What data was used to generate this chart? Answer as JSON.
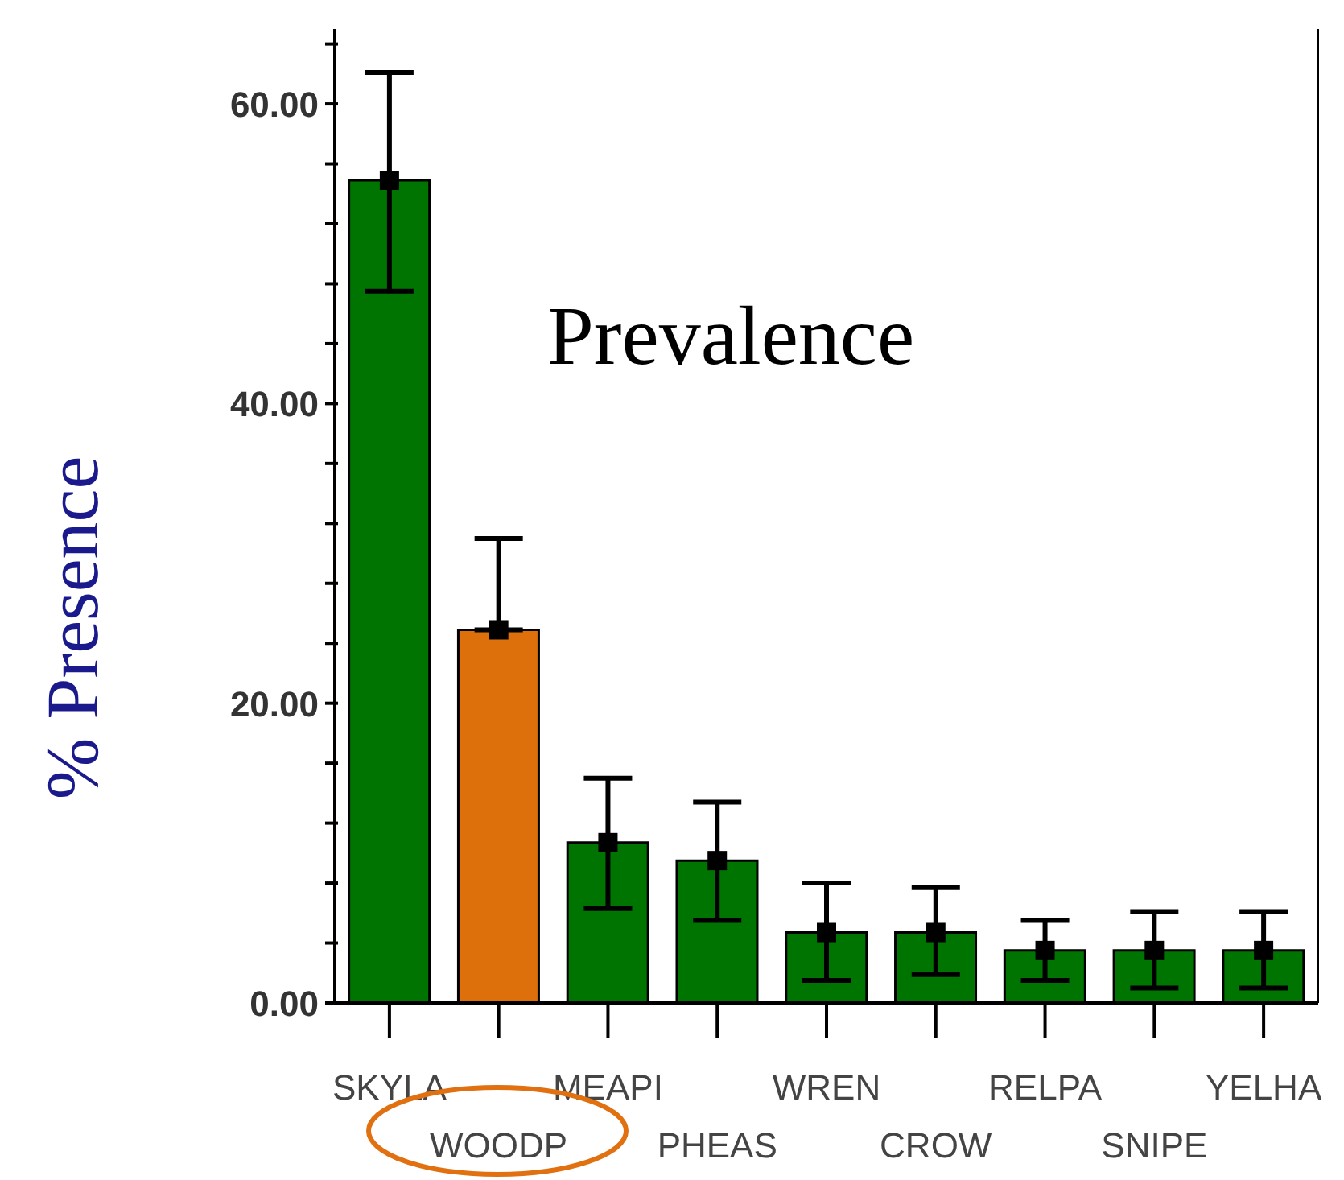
{
  "chart_data": {
    "type": "bar",
    "title": "Prevalence",
    "ylabel": "% Presence",
    "categories": [
      "SKYLA",
      "WOODP",
      "MEAPI",
      "PHEAS",
      "WREN",
      "CROW",
      "RELPA",
      "SNIPE",
      "YELHA"
    ],
    "series": [
      {
        "type": "bar",
        "values": [
          54.9,
          24.9,
          10.7,
          9.5,
          4.7,
          4.7,
          3.5,
          3.5,
          3.5
        ],
        "colors": [
          "#007400",
          "#dd700a",
          "#007400",
          "#007400",
          "#007400",
          "#007400",
          "#007400",
          "#007400",
          "#007400"
        ]
      },
      {
        "type": "scatter",
        "color": "#000000",
        "marker": "square",
        "x": [
          "SKYLA",
          "WOODP",
          "MEAPI",
          "PHEAS",
          "WREN",
          "CROW",
          "RELPA",
          "SNIPE",
          "YELHA"
        ],
        "values": [
          54.9,
          24.9,
          10.7,
          9.5,
          4.7,
          4.7,
          3.5,
          3.5,
          3.5
        ],
        "errors": [
          [
            47.5,
            62.1
          ],
          [
            24.9,
            31.0
          ],
          [
            6.3,
            15.0
          ],
          [
            5.5,
            13.4
          ],
          [
            1.5,
            8.0
          ],
          [
            1.9,
            7.7
          ],
          [
            1.5,
            5.5
          ],
          [
            1.0,
            6.1
          ],
          [
            1.0,
            6.1
          ]
        ]
      }
    ],
    "ylim": [
      0,
      65
    ],
    "yticks": [
      {
        "value": 0,
        "label": "0.00"
      },
      {
        "value": 4,
        "label": null
      },
      {
        "value": 8,
        "label": null
      },
      {
        "value": 12,
        "label": null
      },
      {
        "value": 16,
        "label": null
      },
      {
        "value": 20,
        "label": "20.00"
      },
      {
        "value": 24,
        "label": null
      },
      {
        "value": 28,
        "label": null
      },
      {
        "value": 32,
        "label": null
      },
      {
        "value": 36,
        "label": null
      },
      {
        "value": 40,
        "label": "40.00"
      },
      {
        "value": 44,
        "label": null
      },
      {
        "value": 48,
        "label": null
      },
      {
        "value": 52,
        "label": null
      },
      {
        "value": 56,
        "label": null
      },
      {
        "value": 60,
        "label": "60.00"
      },
      {
        "value": 64,
        "label": null
      }
    ]
  }
}
